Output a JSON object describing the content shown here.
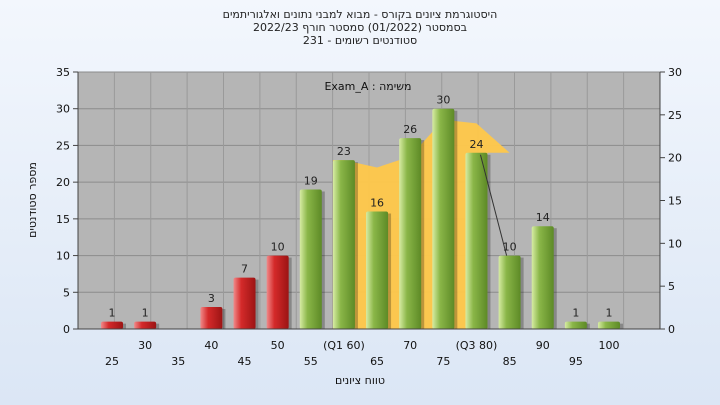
{
  "titles": [
    "היסטוגרמת ציונים בקורס - מבוא למבני נתונים ואלגוריתמים",
    "בסמסטר  (01/2022)  סמסטר חורף 2022/23",
    "סטודנטים רשומים - 231"
  ],
  "colors": {
    "fail": "#d42a2a",
    "pass": "#8ab648",
    "band": "#ffc84a",
    "plot_bg": "#b5b5b5"
  },
  "chart_data": {
    "type": "bar",
    "annotation": "משימה : Exam_A",
    "xlabel": "טווח ציונים",
    "ylabel": "מספר סטודנטים",
    "ylim": [
      0,
      35
    ],
    "y2lim": [
      0,
      30
    ],
    "y_ticks": [
      0,
      5,
      10,
      15,
      20,
      25,
      30,
      35
    ],
    "y2_ticks": [
      0,
      5,
      10,
      15,
      20,
      25,
      30
    ],
    "grid": true,
    "categories": [
      "25",
      "30",
      "35",
      "40",
      "45",
      "50",
      "55",
      "(Q1 60)",
      "65",
      "70",
      "75",
      "(Q3 80)",
      "85",
      "90",
      "95",
      "100"
    ],
    "values": [
      1,
      1,
      0,
      3,
      7,
      10,
      19,
      23,
      16,
      26,
      30,
      24,
      10,
      14,
      1,
      1
    ],
    "data_labels": [
      "1",
      "1",
      "",
      "3",
      "7",
      "10",
      "19",
      "23",
      "16",
      "26",
      "30",
      "24",
      "10",
      "14",
      "1",
      "1"
    ],
    "status": [
      "fail",
      "fail",
      "fail",
      "fail",
      "fail",
      "fail",
      "pass",
      "pass",
      "pass",
      "pass",
      "pass",
      "pass",
      "pass",
      "pass",
      "pass",
      "pass"
    ],
    "band": {
      "from_category": "(Q1 60)",
      "to_category": "(Q3 80)",
      "values": [
        23,
        22,
        23.5,
        28.5,
        28,
        24
      ]
    }
  }
}
